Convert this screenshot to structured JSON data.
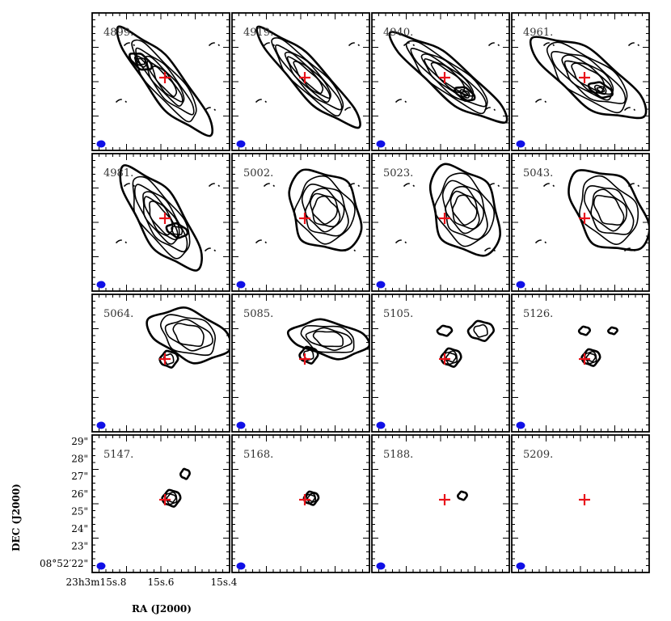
{
  "figure": {
    "colors": {
      "marker": "#e8131a",
      "beam": "#1010e6",
      "contour": "#000000",
      "frame": "#000000"
    },
    "channels": [
      "4899.",
      "4919.",
      "4940.",
      "4961.",
      "4981.",
      "5002.",
      "5023.",
      "5043.",
      "5064.",
      "5085.",
      "5105.",
      "5126.",
      "5147.",
      "5168.",
      "5188.",
      "5209."
    ],
    "y_axis": {
      "title": "DEC (J2000)",
      "ticks": [
        {
          "deg": "",
          "arcmin": "",
          "arcsec": "29",
          "unit": "\""
        },
        {
          "deg": "",
          "arcmin": "",
          "arcsec": "28",
          "unit": "\""
        },
        {
          "deg": "",
          "arcmin": "",
          "arcsec": "27",
          "unit": "\""
        },
        {
          "deg": "",
          "arcmin": "",
          "arcsec": "26",
          "unit": "\""
        },
        {
          "deg": "",
          "arcmin": "",
          "arcsec": "25",
          "unit": "\""
        },
        {
          "deg": "",
          "arcmin": "",
          "arcsec": "24",
          "unit": "\""
        },
        {
          "deg": "",
          "arcmin": "",
          "arcsec": "23",
          "unit": "\""
        },
        {
          "deg": "08",
          "arcmin": "52",
          "arcsec": "22",
          "unit": "\""
        }
      ]
    },
    "x_axis": {
      "title": "RA (J2000)",
      "ticks": [
        {
          "h": "23",
          "m": "3",
          "s": "15",
          "frac": "8"
        },
        {
          "h": "",
          "m": "",
          "s": "15",
          "frac": "6"
        },
        {
          "h": "",
          "m": "",
          "s": "15",
          "frac": "4"
        }
      ]
    },
    "markers": {
      "symbol": "red-cross",
      "beam": "blue-ellipse"
    }
  }
}
